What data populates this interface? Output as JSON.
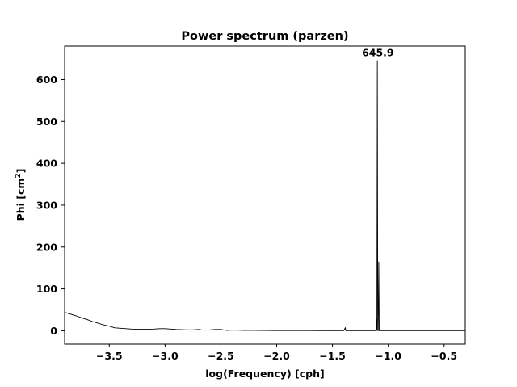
{
  "chart_data": {
    "type": "line",
    "title": "Power spectrum (parzen)",
    "xlabel": "log(Frequency) [cph]",
    "ylabel_main": "Phi [cm",
    "ylabel_sup": "2",
    "ylabel_end": "]",
    "xlim": [
      -3.9,
      -0.31
    ],
    "ylim": [
      -32,
      680
    ],
    "xticks": [
      -3.5,
      -3.0,
      -2.5,
      -2.0,
      -1.5,
      -1.0,
      -0.5
    ],
    "xtick_labels": [
      "−3.5",
      "−3.0",
      "−2.5",
      "−2.0",
      "−1.5",
      "−1.0",
      "−0.5"
    ],
    "yticks": [
      0,
      100,
      200,
      300,
      400,
      500,
      600
    ],
    "ytick_labels": [
      "0",
      "100",
      "200",
      "300",
      "400",
      "500",
      "600"
    ],
    "grid": false,
    "legend": "none",
    "annotation": {
      "text": "645.9",
      "x": -1.1,
      "y": 645.9
    },
    "series": [
      {
        "color": "#000000",
        "points": [
          [
            -3.9,
            44
          ],
          [
            -3.85,
            40
          ],
          [
            -3.8,
            36
          ],
          [
            -3.75,
            31
          ],
          [
            -3.7,
            27
          ],
          [
            -3.65,
            22
          ],
          [
            -3.6,
            18
          ],
          [
            -3.55,
            14
          ],
          [
            -3.5,
            11
          ],
          [
            -3.45,
            7
          ],
          [
            -3.4,
            6
          ],
          [
            -3.35,
            5
          ],
          [
            -3.3,
            4
          ],
          [
            -3.25,
            3.5
          ],
          [
            -3.2,
            3.5
          ],
          [
            -3.15,
            3.5
          ],
          [
            -3.1,
            4
          ],
          [
            -3.05,
            5
          ],
          [
            -3.0,
            5
          ],
          [
            -2.95,
            4
          ],
          [
            -2.9,
            3
          ],
          [
            -2.85,
            2.5
          ],
          [
            -2.8,
            2
          ],
          [
            -2.75,
            2
          ],
          [
            -2.7,
            3
          ],
          [
            -2.65,
            1.5
          ],
          [
            -2.6,
            2
          ],
          [
            -2.55,
            3
          ],
          [
            -2.5,
            3
          ],
          [
            -2.45,
            1
          ],
          [
            -2.4,
            1.5
          ],
          [
            -2.35,
            1.5
          ],
          [
            -2.3,
            1
          ],
          [
            -2.2,
            1
          ],
          [
            -2.0,
            0.5
          ],
          [
            -1.8,
            0.5
          ],
          [
            -1.6,
            0.3
          ],
          [
            -1.42,
            0.3
          ],
          [
            -1.4,
            0.3
          ],
          [
            -1.385,
            7
          ],
          [
            -1.38,
            0.3
          ],
          [
            -1.2,
            0.3
          ],
          [
            -1.108,
            0.3
          ],
          [
            -1.105,
            28
          ],
          [
            -1.102,
            0.3
          ],
          [
            -1.098,
            645.9
          ],
          [
            -1.094,
            0.3
          ],
          [
            -1.09,
            0.3
          ],
          [
            -1.085,
            165
          ],
          [
            -1.081,
            0.3
          ],
          [
            -1.0,
            0.2
          ],
          [
            -0.8,
            0.1
          ],
          [
            -0.5,
            0.1
          ],
          [
            -0.31,
            0.1
          ]
        ]
      }
    ]
  }
}
